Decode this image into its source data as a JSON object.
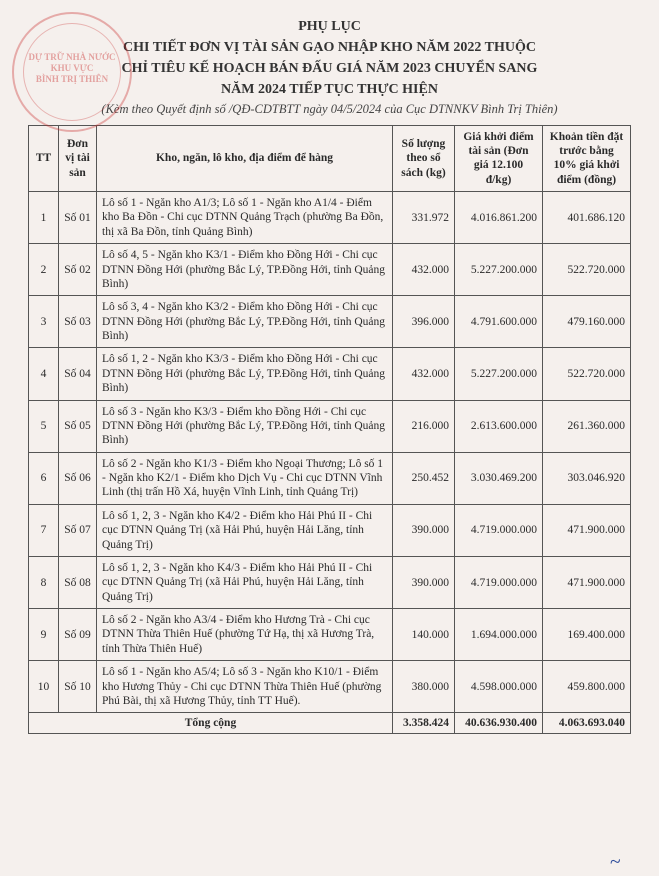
{
  "title": {
    "line1": "PHỤ LỤC",
    "line2": "CHI TIẾT ĐƠN VỊ TÀI SẢN GẠO NHẬP KHO NĂM 2022 THUỘC",
    "line3": "CHỈ TIÊU KẾ HOẠCH BÁN ĐẤU GIÁ NĂM 2023 CHUYỂN SANG",
    "line4": "NĂM 2024 TIẾP TỤC THỰC HIỆN"
  },
  "subtitle": "(Kèm theo Quyết định số      /QĐ-CDTBTT ngày 04/5/2024 của Cục DTNNKV Bình Trị Thiên)",
  "stamp": {
    "line1": "DỰ TRỮ NHÀ NƯỚC",
    "line2": "KHU VỰC",
    "line3": "BÌNH TRỊ THIÊN"
  },
  "headers": {
    "tt": "TT",
    "don": "Đơn vị tài sản",
    "desc": "Kho, ngăn, lô kho, địa điểm để hàng",
    "qty": "Số lượng theo sổ sách (kg)",
    "gia": "Giá khởi điểm tài sản (Đơn giá 12.100 đ/kg)",
    "khoan": "Khoản tiền đặt trước bằng 10% giá khởi điểm (đồng)"
  },
  "rows": [
    {
      "tt": "1",
      "don": "Số 01",
      "desc": "Lô số 1 - Ngăn kho A1/3; Lô số 1 - Ngăn kho A1/4 - Điểm kho Ba Đồn - Chi cục DTNN Quảng Trạch (phường Ba Đồn, thị xã Ba Đồn, tỉnh Quảng Bình)",
      "qty": "331.972",
      "gia": "4.016.861.200",
      "khoan": "401.686.120"
    },
    {
      "tt": "2",
      "don": "Số 02",
      "desc": "Lô số 4, 5 - Ngăn kho K3/1 - Điểm kho Đồng Hới - Chi cục DTNN Đồng Hới (phường Bắc Lý, TP.Đồng Hới, tỉnh Quảng Bình)",
      "qty": "432.000",
      "gia": "5.227.200.000",
      "khoan": "522.720.000"
    },
    {
      "tt": "3",
      "don": "Số 03",
      "desc": "Lô số 3, 4 - Ngăn kho K3/2 - Điểm kho Đồng Hới - Chi cục DTNN Đồng Hới (phường Bắc Lý, TP.Đồng Hới, tỉnh Quảng Bình)",
      "qty": "396.000",
      "gia": "4.791.600.000",
      "khoan": "479.160.000"
    },
    {
      "tt": "4",
      "don": "Số 04",
      "desc": "Lô số 1, 2 - Ngăn kho K3/3 - Điểm kho Đồng Hới - Chi cục DTNN Đồng Hới (phường Bắc Lý, TP.Đồng Hới, tỉnh Quảng Bình)",
      "qty": "432.000",
      "gia": "5.227.200.000",
      "khoan": "522.720.000"
    },
    {
      "tt": "5",
      "don": "Số 05",
      "desc": "Lô số 3 - Ngăn kho K3/3 - Điểm kho Đồng Hới - Chi cục DTNN Đồng Hới (phường Bắc Lý, TP.Đồng Hới, tỉnh Quảng Bình)",
      "qty": "216.000",
      "gia": "2.613.600.000",
      "khoan": "261.360.000"
    },
    {
      "tt": "6",
      "don": "Số 06",
      "desc": "Lô số 2 - Ngăn kho K1/3 - Điểm kho Ngoại Thương; Lô số 1 - Ngăn kho K2/1 - Điểm kho Dịch Vụ - Chi cục DTNN Vĩnh Linh (thị trấn Hồ Xá, huyện Vĩnh Linh, tỉnh Quảng Trị)",
      "qty": "250.452",
      "gia": "3.030.469.200",
      "khoan": "303.046.920"
    },
    {
      "tt": "7",
      "don": "Số 07",
      "desc": "Lô số 1, 2, 3 - Ngăn kho K4/2 - Điểm kho Hải Phú II - Chi cục DTNN Quảng Trị (xã Hải Phú, huyện Hải Lăng, tỉnh Quảng Trị)",
      "qty": "390.000",
      "gia": "4.719.000.000",
      "khoan": "471.900.000"
    },
    {
      "tt": "8",
      "don": "Số 08",
      "desc": "Lô số 1, 2, 3 - Ngăn kho K4/3 - Điểm kho Hải Phú II - Chi cục DTNN Quảng Trị (xã Hải Phú, huyện Hải Lăng, tỉnh Quảng Trị)",
      "qty": "390.000",
      "gia": "4.719.000.000",
      "khoan": "471.900.000"
    },
    {
      "tt": "9",
      "don": "Số 09",
      "desc": "Lô số 2 - Ngăn kho A3/4 - Điểm kho Hương Trà - Chi cục DTNN Thừa Thiên Huế (phường Tứ Hạ, thị xã Hương Trà, tỉnh Thừa Thiên Huế)",
      "qty": "140.000",
      "gia": "1.694.000.000",
      "khoan": "169.400.000"
    },
    {
      "tt": "10",
      "don": "Số 10",
      "desc": "Lô số 1 - Ngăn kho A5/4; Lô số 3 - Ngăn kho K10/1 - Điểm kho Hương Thủy - Chi cục DTNN Thừa Thiên Huế (phường Phú Bài, thị xã Hương Thủy, tỉnh TT Huế).",
      "qty": "380.000",
      "gia": "4.598.000.000",
      "khoan": "459.800.000"
    }
  ],
  "total": {
    "label": "Tổng cộng",
    "qty": "3.358.424",
    "gia": "40.636.930.400",
    "khoan": "4.063.693.040"
  },
  "signature": "~"
}
